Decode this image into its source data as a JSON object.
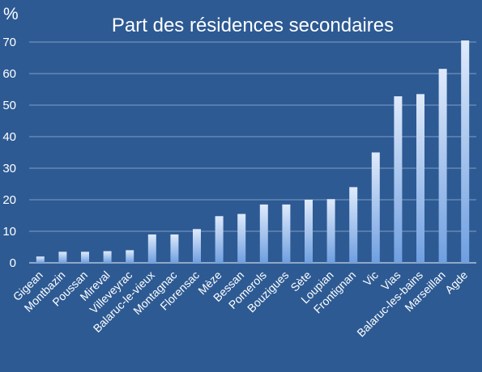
{
  "chart_data": {
    "type": "bar",
    "title": "Part des résidences secondaires",
    "ylabel": "%",
    "xlabel": "",
    "ylim": [
      0,
      70
    ],
    "yticks": [
      0,
      10,
      20,
      30,
      40,
      50,
      60,
      70
    ],
    "grid": true,
    "categories": [
      "Gigean",
      "Montbazin",
      "Poussan",
      "Mireval",
      "Villeveyrac",
      "Balaruc-le-vieux",
      "Montagnac",
      "Florensac",
      "Mèze",
      "Bessan",
      "Pomerols",
      "Bouzigues",
      "Sète",
      "Loupian",
      "Frontignan",
      "Vic",
      "Vias",
      "Balaruc-les-bains",
      "Marseillan",
      "Agde"
    ],
    "values": [
      2,
      3.5,
      3.5,
      3.7,
      4,
      9,
      9,
      10.7,
      14.8,
      15.5,
      18.5,
      18.5,
      20,
      20.2,
      24,
      35,
      52.8,
      53.5,
      61.5,
      70.5
    ],
    "colors": {
      "background": "#2d5a93",
      "bar_top": "#dfeafb",
      "bar_bottom": "#6f9fe0",
      "grid": "#7f9dc4",
      "text": "#ffffff"
    }
  }
}
